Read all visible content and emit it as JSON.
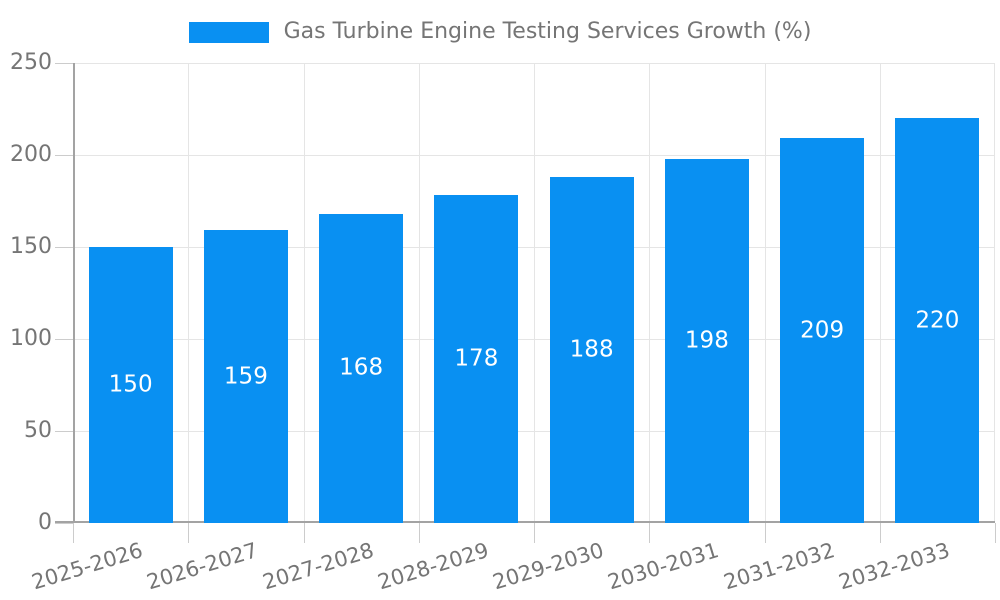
{
  "chart_data": {
    "type": "bar",
    "title": "Gas Turbine Engine Testing Services Growth (%)",
    "legend": {
      "label": "Gas Turbine Engine Testing Services Growth (%)",
      "position": "top"
    },
    "categories": [
      "2025-2026",
      "2026-2027",
      "2027-2028",
      "2028-2029",
      "2029-2030",
      "2030-2031",
      "2031-2032",
      "2032-2033"
    ],
    "values": [
      150,
      159,
      168,
      178,
      188,
      198,
      209,
      220
    ],
    "xlabel": "",
    "ylabel": "",
    "ylim": [
      0,
      250
    ],
    "yticks": [
      0,
      50,
      100,
      150,
      200,
      250
    ],
    "grid": true,
    "value_labels": "inside-middle",
    "colors": {
      "bar": "#0990f2",
      "value_label": "#ffffff",
      "tick_text": "#757575",
      "legend_text": "#757575",
      "grid": "#e5e5e5",
      "axis": "#a3a3a3",
      "tick_mark": "#cccccc",
      "background": "#ffffff"
    }
  }
}
